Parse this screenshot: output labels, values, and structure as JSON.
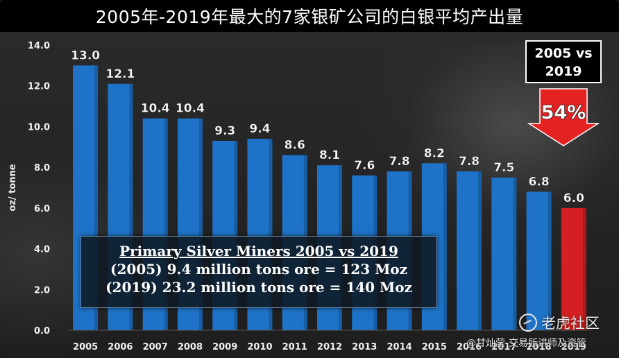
{
  "title": "2005年-2019年最大的7家银矿公司的白银平均产出量",
  "colors": {
    "bar": "#1e73c8",
    "bar_highlight": "#d42020",
    "arrow": "#e52222",
    "text": "#ffffff",
    "axis_text": "#f0f0f0"
  },
  "chart_data": {
    "type": "bar",
    "categories": [
      "2005",
      "2006",
      "2007",
      "2008",
      "2009",
      "2010",
      "2011",
      "2012",
      "2013",
      "2014",
      "2015",
      "2016",
      "2017",
      "2018",
      "2019"
    ],
    "values": [
      13.0,
      12.1,
      10.4,
      10.4,
      9.3,
      9.4,
      8.6,
      8.1,
      7.6,
      7.8,
      8.2,
      7.8,
      7.5,
      6.8,
      6.0
    ],
    "value_labels": [
      "13.0",
      "12.1",
      "10.4",
      "10.4",
      "9.3",
      "9.4",
      "8.6",
      "8.1",
      "7.6",
      "7.8",
      "8.2",
      "7.8",
      "7.5",
      "6.8",
      "6.0"
    ],
    "highlight_index": 14,
    "ylabel": "oz/ tonne",
    "ylim": [
      0,
      14
    ],
    "yticks": [
      0,
      2,
      4,
      6,
      8,
      10,
      12,
      14
    ],
    "ytick_labels": [
      "0.0",
      "2.0",
      "4.0",
      "6.0",
      "8.0",
      "10.0",
      "12.0",
      "14.0"
    ],
    "grid": false,
    "legend": "none"
  },
  "annotation": {
    "heading": "Primary Silver Miners 2005 vs 2019",
    "line1": "(2005) 9.4 million tons ore = 123 Moz",
    "line2": "(2019) 23.2 million tons ore = 140 Moz"
  },
  "callout": {
    "line1": "2005 vs",
    "line2": "2019",
    "arrow_text": "54%"
  },
  "watermark": {
    "logo_text": "老虎社区",
    "user_text": "@甘灿莹-交易所讲师及资管",
    "icon": "tiger-logo-icon"
  }
}
